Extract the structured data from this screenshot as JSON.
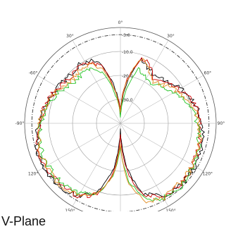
{
  "caption": "V-Plane",
  "chart_data": {
    "type": "polar-line",
    "title": "",
    "angle_unit": "deg",
    "angle_zero": "top",
    "angle_direction": "clockwise",
    "radial_ticks": [
      {
        "value": -3,
        "label": "-3.0"
      },
      {
        "value": -10,
        "label": "-10.0"
      },
      {
        "value": -20,
        "label": "-20.0"
      },
      {
        "value": -30,
        "label": "-30.0"
      }
    ],
    "radial_range": [
      -40,
      0
    ],
    "reference_circle_db": -3,
    "angle_tick_labels": [
      {
        "deg": 0,
        "label": "0°"
      },
      {
        "deg": 30,
        "label": "30°"
      },
      {
        "deg": 60,
        "label": "60°"
      },
      {
        "deg": 90,
        "label": "90°"
      },
      {
        "deg": 120,
        "label": "120°"
      },
      {
        "deg": 150,
        "label": "150°"
      },
      {
        "deg": 180,
        "label": "180°"
      },
      {
        "deg": 210,
        "label": "150°"
      },
      {
        "deg": 240,
        "label": "120°"
      },
      {
        "deg": 270,
        "label": "-90°"
      },
      {
        "deg": 300,
        "label": "-60°"
      },
      {
        "deg": 330,
        "label": "30°"
      }
    ],
    "series": [
      {
        "color": "#000000",
        "points": [
          [
            0,
            -36
          ],
          [
            10,
            -22
          ],
          [
            18,
            -12
          ],
          [
            26,
            -14
          ],
          [
            36,
            -16
          ],
          [
            48,
            -14
          ],
          [
            60,
            -11
          ],
          [
            75,
            -8
          ],
          [
            90,
            -6
          ],
          [
            105,
            -5
          ],
          [
            120,
            -4
          ],
          [
            135,
            -4
          ],
          [
            150,
            -5
          ],
          [
            162,
            -9
          ],
          [
            172,
            -22
          ],
          [
            180,
            -38
          ],
          [
            188,
            -22
          ],
          [
            198,
            -10
          ],
          [
            210,
            -5
          ],
          [
            225,
            -3.5
          ],
          [
            240,
            -3
          ],
          [
            255,
            -4
          ],
          [
            270,
            -6
          ],
          [
            285,
            -8
          ],
          [
            300,
            -10
          ],
          [
            312,
            -11
          ],
          [
            324,
            -10
          ],
          [
            334,
            -11
          ],
          [
            342,
            -14
          ],
          [
            350,
            -24
          ],
          [
            358,
            -34
          ]
        ]
      },
      {
        "color": "#cc0000",
        "points": [
          [
            0,
            -34
          ],
          [
            10,
            -20
          ],
          [
            18,
            -11
          ],
          [
            26,
            -13
          ],
          [
            36,
            -17
          ],
          [
            48,
            -15
          ],
          [
            60,
            -12
          ],
          [
            75,
            -8
          ],
          [
            90,
            -7
          ],
          [
            105,
            -6
          ],
          [
            120,
            -5
          ],
          [
            135,
            -4
          ],
          [
            150,
            -5
          ],
          [
            162,
            -8
          ],
          [
            172,
            -20
          ],
          [
            180,
            -36
          ],
          [
            188,
            -20
          ],
          [
            198,
            -9
          ],
          [
            210,
            -5
          ],
          [
            225,
            -4
          ],
          [
            240,
            -4
          ],
          [
            255,
            -4
          ],
          [
            270,
            -6
          ],
          [
            285,
            -8
          ],
          [
            300,
            -10
          ],
          [
            312,
            -12
          ],
          [
            324,
            -11
          ],
          [
            334,
            -12
          ],
          [
            342,
            -15
          ],
          [
            350,
            -25
          ],
          [
            358,
            -33
          ]
        ]
      },
      {
        "color": "#22c322",
        "points": [
          [
            0,
            -38
          ],
          [
            10,
            -26
          ],
          [
            18,
            -16
          ],
          [
            26,
            -18
          ],
          [
            36,
            -19
          ],
          [
            48,
            -17
          ],
          [
            60,
            -14
          ],
          [
            75,
            -10
          ],
          [
            90,
            -8
          ],
          [
            105,
            -6
          ],
          [
            120,
            -5
          ],
          [
            135,
            -3.5
          ],
          [
            150,
            -4
          ],
          [
            162,
            -7
          ],
          [
            172,
            -16
          ],
          [
            180,
            -30
          ],
          [
            188,
            -18
          ],
          [
            198,
            -10
          ],
          [
            210,
            -6
          ],
          [
            225,
            -5
          ],
          [
            240,
            -5
          ],
          [
            255,
            -5
          ],
          [
            270,
            -7
          ],
          [
            285,
            -9
          ],
          [
            300,
            -12
          ],
          [
            312,
            -14
          ],
          [
            324,
            -14
          ],
          [
            334,
            -14
          ],
          [
            342,
            -18
          ],
          [
            350,
            -28
          ],
          [
            358,
            -36
          ]
        ]
      },
      {
        "color": "#e08a1e",
        "points": [
          [
            0,
            -35
          ],
          [
            10,
            -21
          ],
          [
            18,
            -12
          ],
          [
            26,
            -14
          ],
          [
            36,
            -18
          ],
          [
            48,
            -16
          ],
          [
            60,
            -13
          ],
          [
            75,
            -9
          ],
          [
            90,
            -7
          ],
          [
            105,
            -6
          ],
          [
            120,
            -5
          ],
          [
            135,
            -5
          ],
          [
            150,
            -4
          ],
          [
            162,
            -6
          ],
          [
            172,
            -14
          ],
          [
            180,
            -32
          ],
          [
            188,
            -19
          ],
          [
            198,
            -9
          ],
          [
            210,
            -5
          ],
          [
            225,
            -4
          ],
          [
            240,
            -4
          ],
          [
            255,
            -5
          ],
          [
            270,
            -6
          ],
          [
            285,
            -8
          ],
          [
            300,
            -11
          ],
          [
            312,
            -13
          ],
          [
            324,
            -12
          ],
          [
            334,
            -13
          ],
          [
            342,
            -16
          ],
          [
            350,
            -26
          ],
          [
            358,
            -34
          ]
        ]
      }
    ]
  }
}
